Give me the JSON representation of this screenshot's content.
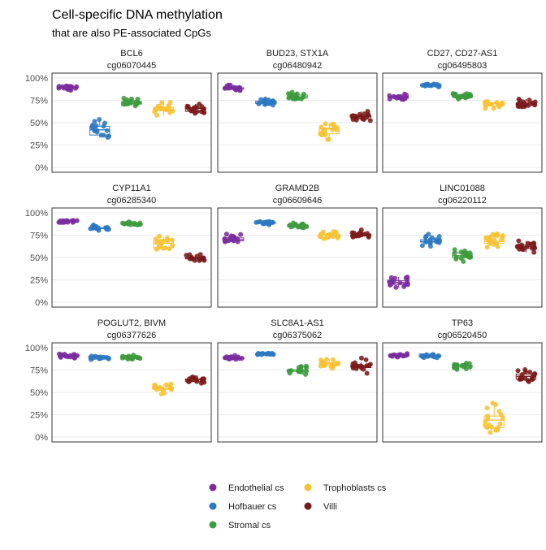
{
  "chart_data": {
    "type": "box-jitter",
    "title": "Cell-specific DNA methylation",
    "subtitle": "that are also PE-associated CpGs",
    "xlabel": "",
    "ylabel": "",
    "ylim": [
      0,
      1
    ],
    "y_ticks": [
      "0%",
      "25%",
      "50%",
      "75%",
      "100%"
    ],
    "grid": true,
    "legend_position": "bottom",
    "groups": [
      {
        "name": "Endothelial cs",
        "color": "#7B2C9E"
      },
      {
        "name": "Hofbauer cs",
        "color": "#2E78C2"
      },
      {
        "name": "Stromal cs",
        "color": "#3E9A3E"
      },
      {
        "name": "Trophoblasts cs",
        "color": "#F7C133"
      },
      {
        "name": "Villi",
        "color": "#7A1A1A"
      }
    ],
    "panels": [
      {
        "gene": "BCL6",
        "cpg": "cg06070445",
        "medians": [
          0.89,
          0.42,
          0.72,
          0.65,
          0.66
        ],
        "spreads": [
          0.03,
          0.1,
          0.06,
          0.07,
          0.05
        ]
      },
      {
        "gene": "BUD23, STX1A",
        "cpg": "cg06480942",
        "medians": [
          0.89,
          0.72,
          0.79,
          0.43,
          0.57
        ],
        "spreads": [
          0.03,
          0.04,
          0.04,
          0.1,
          0.05
        ]
      },
      {
        "gene": "CD27, CD27-AS1",
        "cpg": "cg06495803",
        "medians": [
          0.78,
          0.92,
          0.8,
          0.71,
          0.71
        ],
        "spreads": [
          0.03,
          0.02,
          0.03,
          0.05,
          0.04
        ]
      },
      {
        "gene": "CYP11A1",
        "cpg": "cg06285340",
        "medians": [
          0.9,
          0.83,
          0.88,
          0.66,
          0.5
        ],
        "spreads": [
          0.02,
          0.03,
          0.02,
          0.08,
          0.04
        ]
      },
      {
        "gene": "GRAMD2B",
        "cpg": "cg06609646",
        "medians": [
          0.7,
          0.89,
          0.86,
          0.75,
          0.75
        ],
        "spreads": [
          0.05,
          0.02,
          0.03,
          0.04,
          0.05
        ]
      },
      {
        "gene": "LINC01088",
        "cpg": "cg06220112",
        "medians": [
          0.22,
          0.68,
          0.52,
          0.68,
          0.62
        ],
        "spreads": [
          0.06,
          0.08,
          0.06,
          0.08,
          0.07
        ]
      },
      {
        "gene": "POGLUT2, BIVM",
        "cpg": "cg06377626",
        "medians": [
          0.9,
          0.89,
          0.89,
          0.54,
          0.64
        ],
        "spreads": [
          0.03,
          0.02,
          0.02,
          0.07,
          0.03
        ]
      },
      {
        "gene": "SLC8A1-AS1",
        "cpg": "cg06375062",
        "medians": [
          0.89,
          0.93,
          0.75,
          0.82,
          0.79
        ],
        "spreads": [
          0.02,
          0.01,
          0.04,
          0.04,
          0.07
        ]
      },
      {
        "gene": "TP63",
        "cpg": "cg06520450",
        "medians": [
          0.91,
          0.91,
          0.8,
          0.19,
          0.68
        ],
        "spreads": [
          0.02,
          0.02,
          0.04,
          0.14,
          0.07
        ]
      }
    ]
  }
}
